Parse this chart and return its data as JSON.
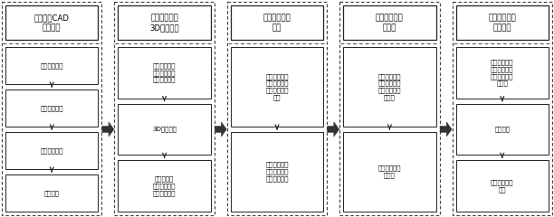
{
  "bg_color": "#ffffff",
  "columns": [
    {
      "header": "模具结构CAD\n优化设计",
      "steps": [
        "建立叶轮模型",
        "抽取模具元件",
        "结构优化设计",
        "抽壳设计"
      ]
    },
    {
      "header": "树脂模具型壳\n3D打印成形",
      "steps": [
        "前处理：造型\n方向定位、设\n计支撑、分层",
        "3D打印成形",
        "后处理：清\n洗、去支撑、\n后固化、打磨"
      ]
    },
    {
      "header": "安装金属冷却\n管道",
      "steps": [
        "冷却管道两端\n从树脂型壳内\n部向外插入安\n装孔",
        "冷却管道中间\n部分固定安装\n在支撑结构上"
      ]
    },
    {
      "header": "制备金属树脂\n混合物",
      "steps": [
        "定量称取环氧\n树脂、环氧固\n化剂及金属粉\n末备用",
        "混合并快速搅\n拌均匀"
      ]
    },
    {
      "header": "模具型壳内部\n填充固化",
      "steps": [
        "金属树脂混合\n物倒入树脂模\n具型壳内部空\n腔结构",
        "静置固化",
        "制得快速压蜡\n模具"
      ]
    }
  ]
}
